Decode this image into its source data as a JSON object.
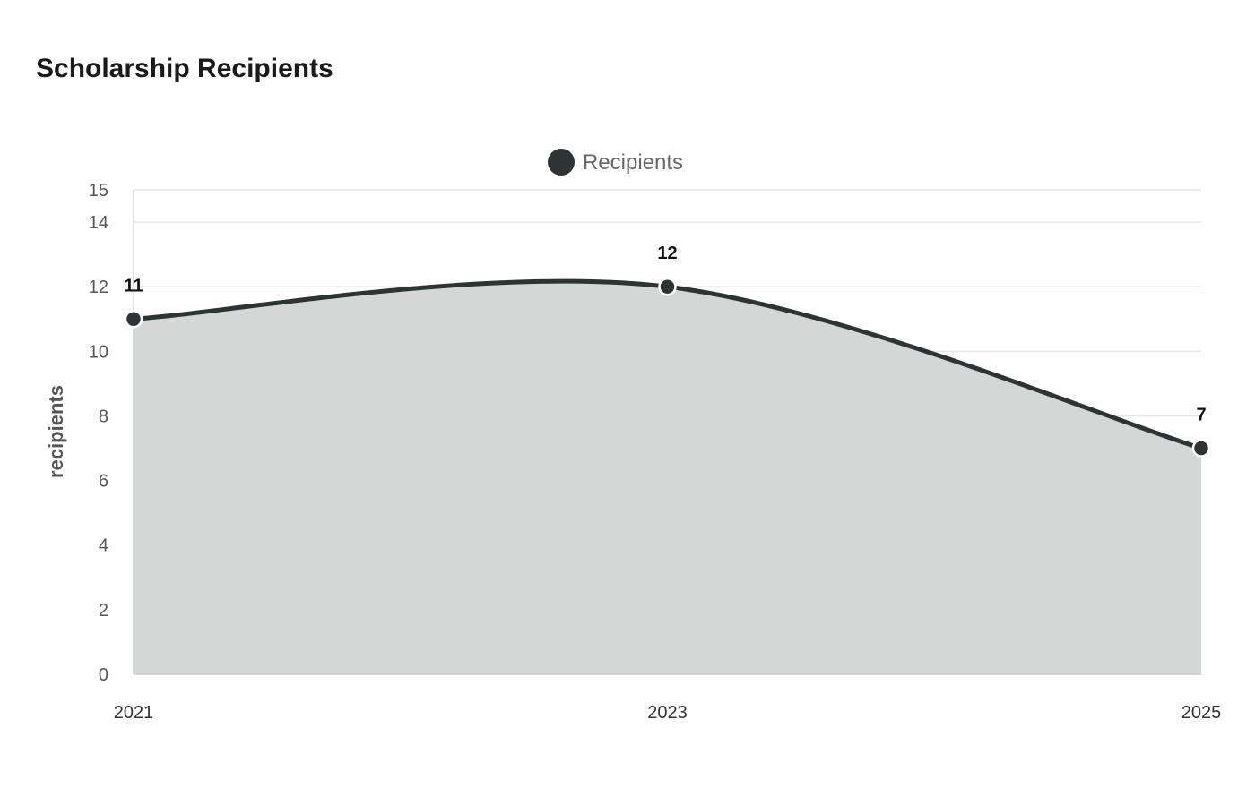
{
  "chart_data": {
    "type": "area",
    "title": "Scholarship Recipients",
    "xlabel": "",
    "ylabel": "recipients",
    "categories": [
      "2021",
      "2023",
      "2025"
    ],
    "series": [
      {
        "name": "Recipients",
        "values": [
          11,
          12,
          7
        ],
        "color": "#2e3436",
        "fill": "#d5d7d6"
      }
    ],
    "yticks": [
      0,
      2,
      4,
      6,
      8,
      10,
      12,
      14,
      15
    ],
    "ylim": [
      0,
      15
    ],
    "grid": true,
    "legend_position": "top-center",
    "data_labels": true
  }
}
